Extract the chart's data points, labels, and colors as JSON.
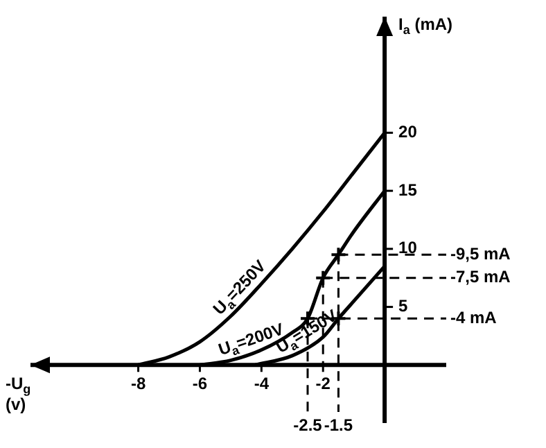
{
  "chart_data": {
    "type": "line",
    "xlabel": "-U$_{g}$ (v)",
    "ylabel": "I$_{a}$ (mA)",
    "xlim": [
      -11.5,
      2
    ],
    "ylim": [
      -5,
      30
    ],
    "xticks": [
      -8,
      -6,
      -4,
      -2
    ],
    "yticks": [
      5,
      10,
      15,
      20
    ],
    "legend": false,
    "marker": "none",
    "line_style": "solid",
    "series": [
      {
        "name": "U$_{a}$=250V",
        "color": "#000000",
        "x": [
          -8,
          -7,
          -6,
          -5,
          -4,
          -3,
          -2,
          -1,
          0
        ],
        "values": [
          0,
          0.7,
          2,
          4.2,
          7,
          10,
          13.2,
          16.6,
          20
        ]
      },
      {
        "name": "U$_{a}$=200V",
        "color": "#000000",
        "x": [
          -6,
          -5,
          -4,
          -3,
          -2.5,
          -2,
          -1.5,
          -1,
          0
        ],
        "values": [
          0,
          0.4,
          1.3,
          2.8,
          4,
          7.5,
          9.5,
          11.5,
          15
        ]
      },
      {
        "name": "U$_{a}$=150V",
        "color": "#000000",
        "x": [
          -4.2,
          -3,
          -2,
          -1.5,
          -1,
          0
        ],
        "values": [
          0,
          0.8,
          2.4,
          4,
          5.5,
          8.5
        ]
      },
      {
        "type": "scatter",
        "marker": "cross",
        "color": "#000000",
        "x": [
          -2.5,
          -2,
          -1.5,
          -1.5
        ],
        "values": [
          4,
          7.5,
          9.5,
          4
        ]
      }
    ],
    "ref_lines": [
      {
        "axis": "y",
        "value": 9.5,
        "label": "-9,5 mA",
        "line_style": "dashed"
      },
      {
        "axis": "y",
        "value": 7.5,
        "label": "-7,5 mA",
        "line_style": "dashed"
      },
      {
        "axis": "y",
        "value": 4,
        "label": "-4 mA",
        "line_style": "dashed"
      },
      {
        "axis": "x",
        "value": -2.5,
        "label": "-2.5",
        "line_style": "dashed"
      },
      {
        "axis": "x",
        "value": -2,
        "label": null,
        "line_style": "dashed"
      },
      {
        "axis": "x",
        "value": -1.5,
        "label": "-1.5",
        "line_style": "dashed"
      }
    ]
  }
}
